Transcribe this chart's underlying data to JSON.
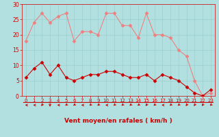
{
  "x": [
    0,
    1,
    2,
    3,
    4,
    5,
    6,
    7,
    8,
    9,
    10,
    11,
    12,
    13,
    14,
    15,
    16,
    17,
    18,
    19,
    20,
    21,
    22,
    23
  ],
  "rafales": [
    18,
    24,
    27,
    24,
    26,
    27,
    18,
    21,
    21,
    20,
    27,
    27,
    23,
    23,
    19,
    27,
    20,
    20,
    19,
    15,
    13,
    5,
    0,
    1
  ],
  "moyen": [
    6,
    9,
    11,
    7,
    10,
    6,
    5,
    6,
    7,
    7,
    8,
    8,
    7,
    6,
    6,
    7,
    5,
    7,
    6,
    5,
    3,
    1,
    0,
    2
  ],
  "color_rafales": "#f08080",
  "color_moyen": "#cc0000",
  "bg_color": "#b2e0e0",
  "grid_color": "#9ecece",
  "xlabel": "Vent moyen/en rafales ( km/h )",
  "xlabel_color": "#cc0000",
  "tick_color": "#cc0000",
  "ylim": [
    0,
    30
  ],
  "yticks": [
    0,
    5,
    10,
    15,
    20,
    25,
    30
  ],
  "marker": "D",
  "marker_size": 2.5,
  "arrow_angles": [
    180,
    180,
    225,
    270,
    180,
    210,
    210,
    180,
    210,
    210,
    180,
    210,
    210,
    210,
    210,
    225,
    210,
    180,
    210,
    210,
    225,
    225,
    225,
    210
  ]
}
